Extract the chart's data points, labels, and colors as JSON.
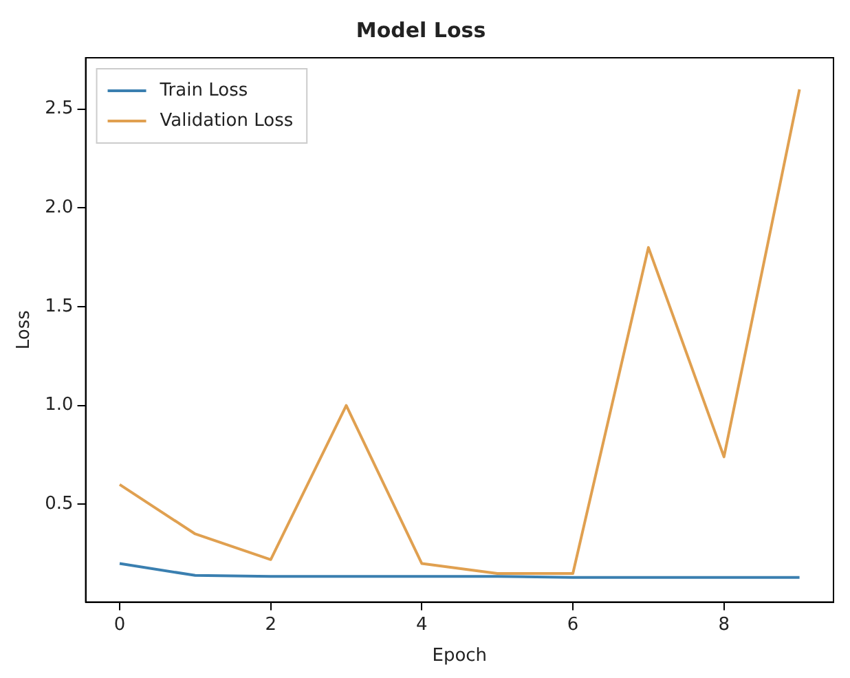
{
  "chart_data": {
    "type": "line",
    "title": "Model Loss",
    "xlabel": "Epoch",
    "ylabel": "Loss",
    "x": [
      0,
      1,
      2,
      3,
      4,
      5,
      6,
      7,
      8,
      9
    ],
    "series": [
      {
        "name": "Train Loss",
        "color": "#3a7fb0",
        "values": [
          0.2,
          0.14,
          0.135,
          0.135,
          0.135,
          0.135,
          0.13,
          0.13,
          0.13,
          0.13
        ]
      },
      {
        "name": "Validation Loss",
        "color": "#e0a050",
        "values": [
          0.6,
          0.35,
          0.22,
          1.0,
          0.2,
          0.15,
          0.15,
          1.8,
          0.74,
          2.6
        ]
      }
    ],
    "xlim": [
      -0.45,
      9.45
    ],
    "xticks": [
      0,
      2,
      4,
      6,
      8
    ],
    "ylim": [
      0.005,
      2.76
    ],
    "yticks": [
      0.5,
      {
        "value": 1,
        "label": "1.0"
      },
      1.5,
      {
        "value": 2,
        "label": "2.0"
      },
      2.5
    ],
    "grid": false,
    "legend": "top left",
    "marker": "none",
    "line_style": "solid"
  }
}
